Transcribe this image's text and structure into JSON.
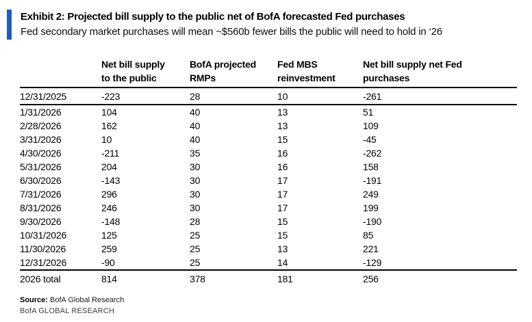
{
  "style": {
    "accent_color": "#1a5dc8"
  },
  "chart_data": {
    "type": "table",
    "title": "Exhibit 2: Projected bill supply to the public net of BofA forecasted Fed purchases",
    "subtitle": "Fed secondary market purchases will mean ~$560b fewer bills the public will need to hold in ‘26",
    "columns": [
      "",
      "Net bill supply\nto the public",
      "BofA projected\nRMPs",
      "Fed MBS\nreinvestment",
      "Net bill supply net Fed\npurchases"
    ],
    "rows": [
      [
        "12/31/2025",
        -223,
        28,
        10,
        -261
      ],
      [
        "1/31/2026",
        104,
        40,
        13,
        51
      ],
      [
        "2/28/2026",
        162,
        40,
        13,
        109
      ],
      [
        "3/31/2026",
        10,
        40,
        15,
        -45
      ],
      [
        "4/30/2026",
        -211,
        35,
        16,
        -262
      ],
      [
        "5/31/2026",
        204,
        30,
        16,
        158
      ],
      [
        "6/30/2026",
        -143,
        30,
        17,
        -191
      ],
      [
        "7/31/2026",
        296,
        30,
        17,
        249
      ],
      [
        "8/31/2026",
        246,
        30,
        17,
        199
      ],
      [
        "9/30/2026",
        -148,
        28,
        15,
        -190
      ],
      [
        "10/31/2026",
        125,
        25,
        15,
        85
      ],
      [
        "11/30/2026",
        259,
        25,
        13,
        221
      ],
      [
        "12/31/2026",
        -90,
        25,
        14,
        -129
      ]
    ],
    "total_row": [
      "2026 total",
      814,
      378,
      181,
      256
    ]
  },
  "footer": {
    "source_label": "Source:",
    "source_value": "BofA Global Research",
    "brand": "BofA GLOBAL RESEARCH"
  }
}
